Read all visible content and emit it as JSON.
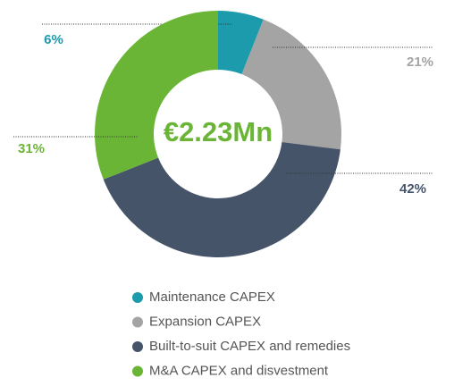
{
  "chart_data": {
    "type": "donut",
    "center_label": "€2.23Mn",
    "categories": [
      "Maintenance CAPEX",
      "Expansion CAPEX",
      "Built-to-suit CAPEX and remedies",
      "M&A CAPEX and disvestment"
    ],
    "values": [
      6,
      21,
      42,
      31
    ],
    "value_labels": [
      "6%",
      "21%",
      "42%",
      "31%"
    ],
    "colors": [
      "#1b9bab",
      "#a4a4a4",
      "#46546a",
      "#6bb536"
    ],
    "legend": "bottom"
  }
}
